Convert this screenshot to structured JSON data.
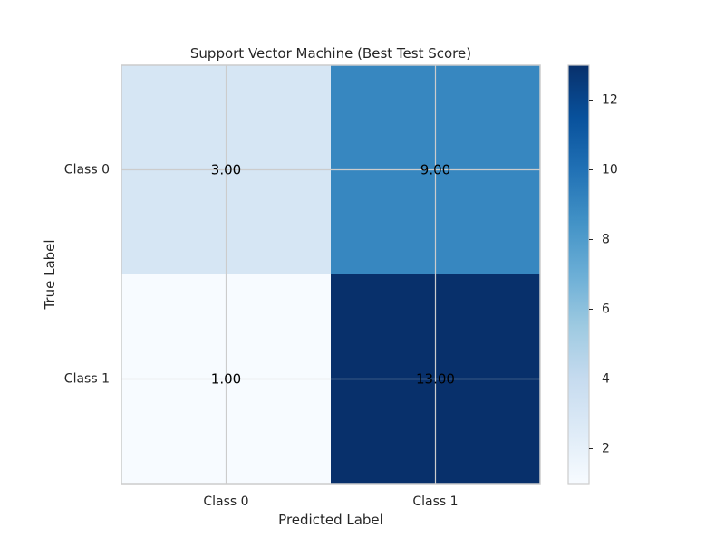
{
  "chart_data": {
    "type": "heatmap",
    "title": "Support Vector Machine (Best Test Score)",
    "xlabel": "Predicted Label",
    "ylabel": "True Label",
    "x_categories": [
      "Class 0",
      "Class 1"
    ],
    "y_categories": [
      "Class 0",
      "Class 1"
    ],
    "values": [
      [
        3,
        9
      ],
      [
        1,
        13
      ]
    ],
    "cell_labels": [
      [
        "3.00",
        "9.00"
      ],
      [
        "1.00",
        "13.00"
      ]
    ],
    "colormap": "Blues",
    "color_range": [
      1,
      13
    ],
    "colorbar_ticks": [
      2,
      4,
      6,
      8,
      10,
      12
    ],
    "grid": true
  }
}
